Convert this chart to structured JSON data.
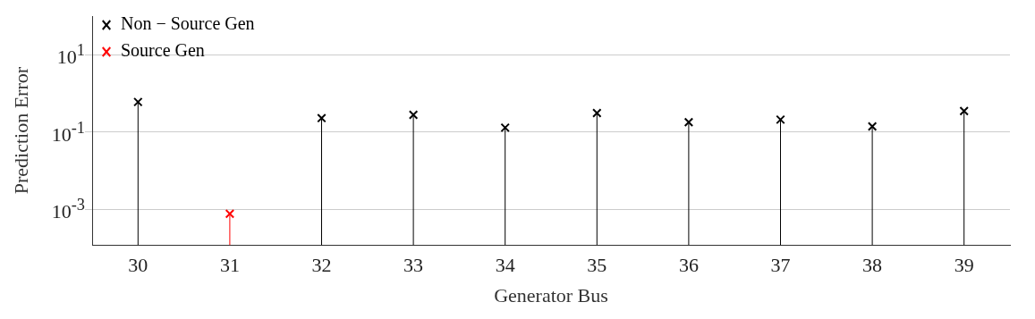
{
  "chart_data": {
    "type": "lollipop",
    "xlabel": "Generator Bus",
    "ylabel": "Prediction Error",
    "categories": [
      "30",
      "31",
      "32",
      "33",
      "34",
      "35",
      "36",
      "37",
      "38",
      "39"
    ],
    "series": [
      {
        "name": "Non − Source Gen",
        "color": "#000000",
        "marker": "cross",
        "values": [
          0.6,
          null,
          0.23,
          0.28,
          0.13,
          0.31,
          0.18,
          0.21,
          0.14,
          0.35
        ]
      },
      {
        "name": "Source Gen",
        "color": "#ff0000",
        "marker": "cross",
        "values": [
          null,
          0.00077,
          null,
          null,
          null,
          null,
          null,
          null,
          null,
          null
        ]
      }
    ],
    "log": "y",
    "ylim": [
      0.00012,
      100
    ],
    "yticks": [
      {
        "value": 0.001,
        "label": "10$^{-3}$"
      },
      {
        "value": 0.1,
        "label": "10$^{-1}$"
      },
      {
        "value": 10,
        "label": "10$^{1}$"
      }
    ],
    "grid": "y",
    "legend": "top left"
  }
}
